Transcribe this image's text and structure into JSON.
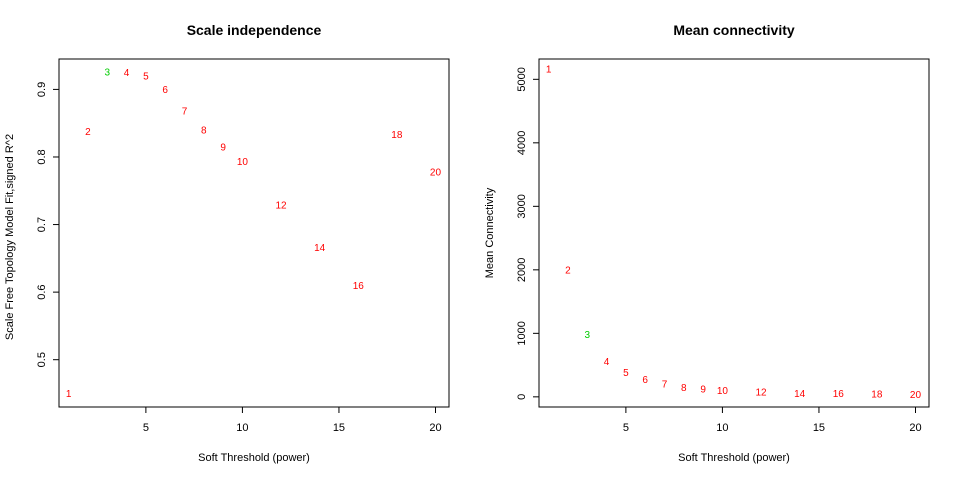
{
  "colors": {
    "default": "#ff0000",
    "highlight": "#00cc00",
    "axis": "#000000"
  },
  "chart_data": [
    {
      "type": "scatter",
      "title": "Scale independence",
      "xlabel": "Soft Threshold (power)",
      "ylabel": "Scale Free Topology Model Fit,signed R^2",
      "xlim": [
        0.5,
        20.7
      ],
      "ylim": [
        0.43,
        0.945
      ],
      "xticks": [
        5,
        10,
        15,
        20
      ],
      "yticks": [
        0.5,
        0.6,
        0.7,
        0.8,
        0.9
      ],
      "ytick_labels": [
        "0.5",
        "0.6",
        "0.7",
        "0.8",
        "0.9"
      ],
      "grid": false,
      "highlight_label": "3",
      "points": [
        {
          "x": 1,
          "y": 0.45,
          "label": "1"
        },
        {
          "x": 2,
          "y": 0.838,
          "label": "2"
        },
        {
          "x": 3,
          "y": 0.926,
          "label": "3"
        },
        {
          "x": 4,
          "y": 0.925,
          "label": "4"
        },
        {
          "x": 5,
          "y": 0.92,
          "label": "5"
        },
        {
          "x": 6,
          "y": 0.9,
          "label": "6"
        },
        {
          "x": 7,
          "y": 0.868,
          "label": "7"
        },
        {
          "x": 8,
          "y": 0.84,
          "label": "8"
        },
        {
          "x": 9,
          "y": 0.815,
          "label": "9"
        },
        {
          "x": 10,
          "y": 0.793,
          "label": "10"
        },
        {
          "x": 12,
          "y": 0.729,
          "label": "12"
        },
        {
          "x": 14,
          "y": 0.666,
          "label": "14"
        },
        {
          "x": 16,
          "y": 0.61,
          "label": "16"
        },
        {
          "x": 18,
          "y": 0.833,
          "label": "18"
        },
        {
          "x": 20,
          "y": 0.778,
          "label": "20"
        }
      ]
    },
    {
      "type": "scatter",
      "title": "Mean connectivity",
      "xlabel": "Soft Threshold (power)",
      "ylabel": "Mean Connectivity",
      "xlim": [
        0.5,
        20.7
      ],
      "ylim": [
        -160,
        5320
      ],
      "xticks": [
        5,
        10,
        15,
        20
      ],
      "yticks": [
        0,
        1000,
        2000,
        3000,
        4000,
        5000
      ],
      "ytick_labels": [
        "0",
        "1000",
        "2000",
        "3000",
        "4000",
        "5000"
      ],
      "grid": false,
      "highlight_label": "3",
      "points": [
        {
          "x": 1,
          "y": 5160,
          "label": "1"
        },
        {
          "x": 2,
          "y": 2000,
          "label": "2"
        },
        {
          "x": 3,
          "y": 980,
          "label": "3"
        },
        {
          "x": 4,
          "y": 560,
          "label": "4"
        },
        {
          "x": 5,
          "y": 380,
          "label": "5"
        },
        {
          "x": 6,
          "y": 270,
          "label": "6"
        },
        {
          "x": 7,
          "y": 200,
          "label": "7"
        },
        {
          "x": 8,
          "y": 150,
          "label": "8"
        },
        {
          "x": 9,
          "y": 120,
          "label": "9"
        },
        {
          "x": 10,
          "y": 100,
          "label": "10"
        },
        {
          "x": 12,
          "y": 75,
          "label": "12"
        },
        {
          "x": 14,
          "y": 55,
          "label": "14"
        },
        {
          "x": 16,
          "y": 55,
          "label": "16"
        },
        {
          "x": 18,
          "y": 45,
          "label": "18"
        },
        {
          "x": 20,
          "y": 40,
          "label": "20"
        }
      ]
    }
  ]
}
